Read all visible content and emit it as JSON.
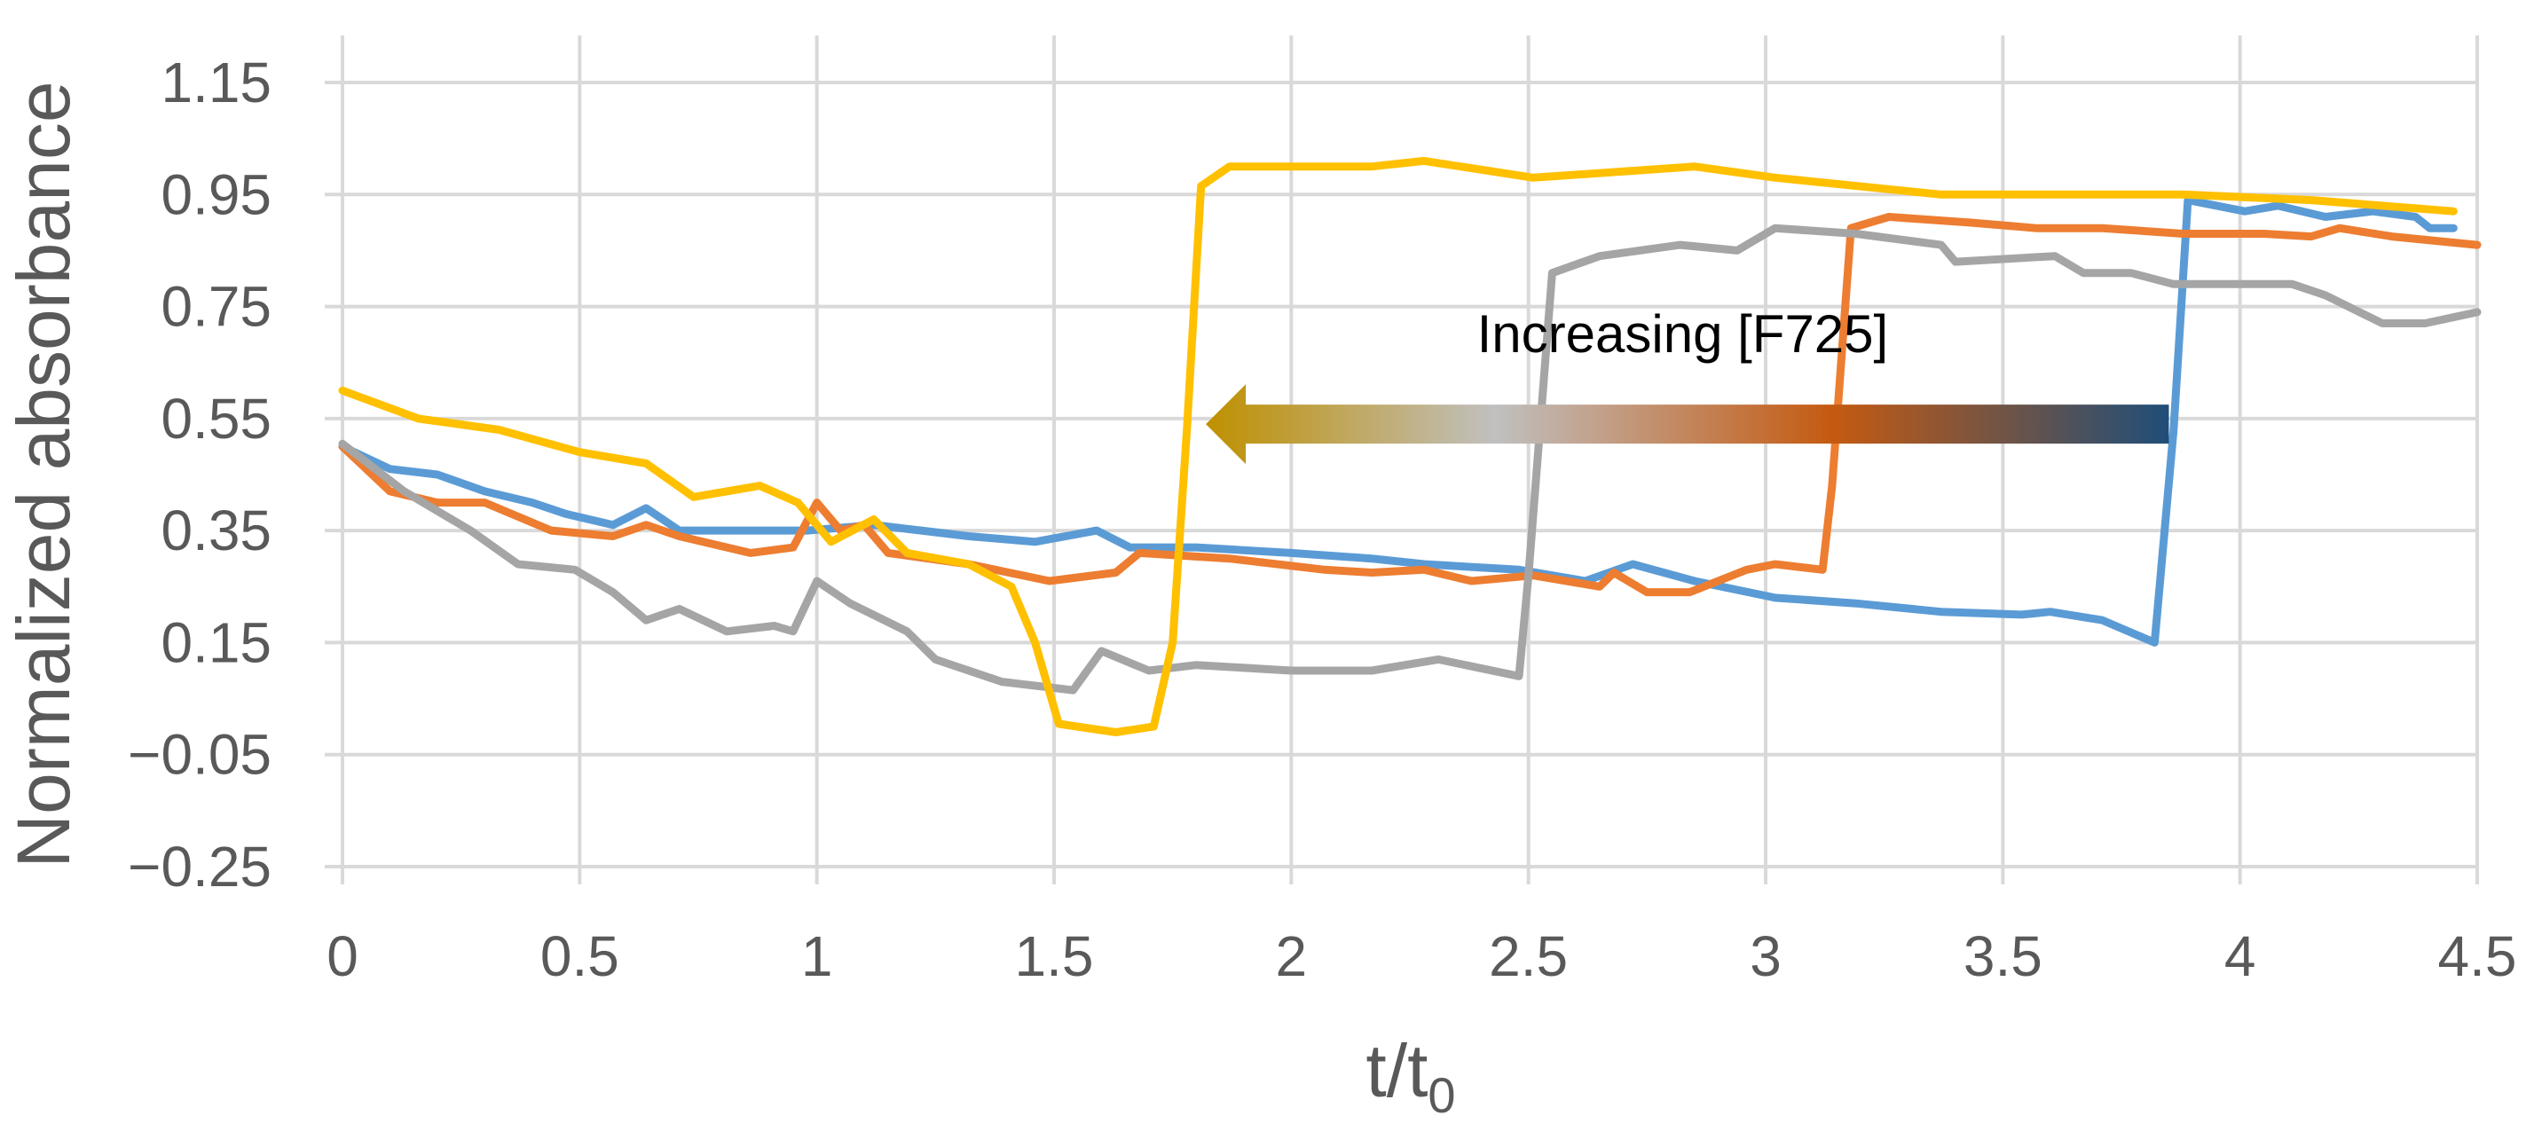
{
  "chart_data": {
    "type": "line",
    "title": "",
    "xlabel": "t/t",
    "xlabel_subscript": "0",
    "ylabel": "Normalized absorbance",
    "xlim": [
      0,
      4.5
    ],
    "ylim": [
      -0.25,
      1.15
    ],
    "x_ticks": [
      "0",
      "0.5",
      "1",
      "1.5",
      "2",
      "2.5",
      "3",
      "3.5",
      "4",
      "4.5"
    ],
    "y_ticks": [
      "1.15",
      "0.95",
      "0.75",
      "0.55",
      "0.35",
      "0.15",
      "−0.05",
      "−0.25"
    ],
    "grid": true,
    "legend": "none",
    "annotation": {
      "text": "Increasing [F725]",
      "arrow_from_x": 3.85,
      "arrow_to_x": 1.82,
      "arrow_y": 0.54,
      "arrow_gradient": [
        "#bf9000",
        "#c0c0c0",
        "#c55a11",
        "#1f4e79"
      ]
    },
    "series": [
      {
        "color": "#5b9bd5",
        "points": [
          [
            0,
            0.5
          ],
          [
            0.1,
            0.46
          ],
          [
            0.2,
            0.45
          ],
          [
            0.3,
            0.42
          ],
          [
            0.4,
            0.4
          ],
          [
            0.47,
            0.38
          ],
          [
            0.57,
            0.36
          ],
          [
            0.64,
            0.39
          ],
          [
            0.71,
            0.35
          ],
          [
            0.84,
            0.35
          ],
          [
            0.98,
            0.35
          ],
          [
            1.12,
            0.36
          ],
          [
            1.22,
            0.35
          ],
          [
            1.32,
            0.34
          ],
          [
            1.46,
            0.33
          ],
          [
            1.59,
            0.35
          ],
          [
            1.66,
            0.32
          ],
          [
            1.8,
            0.32
          ],
          [
            2.0,
            0.31
          ],
          [
            2.17,
            0.3
          ],
          [
            2.28,
            0.29
          ],
          [
            2.48,
            0.28
          ],
          [
            2.62,
            0.26
          ],
          [
            2.72,
            0.29
          ],
          [
            2.85,
            0.26
          ],
          [
            3.02,
            0.23
          ],
          [
            3.19,
            0.22
          ],
          [
            3.37,
            0.205
          ],
          [
            3.54,
            0.2
          ],
          [
            3.6,
            0.205
          ],
          [
            3.71,
            0.19
          ],
          [
            3.82,
            0.15
          ],
          [
            3.86,
            0.53
          ],
          [
            3.89,
            0.94
          ],
          [
            4.01,
            0.92
          ],
          [
            4.08,
            0.93
          ],
          [
            4.18,
            0.91
          ],
          [
            4.28,
            0.92
          ],
          [
            4.37,
            0.91
          ],
          [
            4.4,
            0.89
          ],
          [
            4.45,
            0.89
          ]
        ]
      },
      {
        "color": "#ed7d31",
        "points": [
          [
            0,
            0.5
          ],
          [
            0.1,
            0.42
          ],
          [
            0.2,
            0.4
          ],
          [
            0.3,
            0.4
          ],
          [
            0.44,
            0.35
          ],
          [
            0.57,
            0.34
          ],
          [
            0.64,
            0.36
          ],
          [
            0.71,
            0.34
          ],
          [
            0.86,
            0.31
          ],
          [
            0.95,
            0.32
          ],
          [
            1.0,
            0.4
          ],
          [
            1.05,
            0.35
          ],
          [
            1.1,
            0.36
          ],
          [
            1.15,
            0.31
          ],
          [
            1.32,
            0.29
          ],
          [
            1.49,
            0.26
          ],
          [
            1.63,
            0.275
          ],
          [
            1.68,
            0.31
          ],
          [
            1.87,
            0.3
          ],
          [
            2.07,
            0.28
          ],
          [
            2.17,
            0.275
          ],
          [
            2.28,
            0.28
          ],
          [
            2.38,
            0.26
          ],
          [
            2.51,
            0.27
          ],
          [
            2.65,
            0.25
          ],
          [
            2.68,
            0.275
          ],
          [
            2.75,
            0.24
          ],
          [
            2.84,
            0.24
          ],
          [
            2.96,
            0.28
          ],
          [
            3.02,
            0.29
          ],
          [
            3.12,
            0.28
          ],
          [
            3.14,
            0.43
          ],
          [
            3.18,
            0.89
          ],
          [
            3.26,
            0.91
          ],
          [
            3.43,
            0.9
          ],
          [
            3.57,
            0.89
          ],
          [
            3.71,
            0.89
          ],
          [
            3.88,
            0.88
          ],
          [
            4.05,
            0.88
          ],
          [
            4.15,
            0.875
          ],
          [
            4.21,
            0.89
          ],
          [
            4.32,
            0.875
          ],
          [
            4.5,
            0.86
          ]
        ]
      },
      {
        "color": "#a5a5a5",
        "points": [
          [
            0,
            0.505
          ],
          [
            0.13,
            0.42
          ],
          [
            0.27,
            0.35
          ],
          [
            0.37,
            0.29
          ],
          [
            0.49,
            0.28
          ],
          [
            0.57,
            0.24
          ],
          [
            0.64,
            0.19
          ],
          [
            0.71,
            0.21
          ],
          [
            0.81,
            0.17
          ],
          [
            0.91,
            0.18
          ],
          [
            0.95,
            0.17
          ],
          [
            1.0,
            0.26
          ],
          [
            1.07,
            0.22
          ],
          [
            1.19,
            0.17
          ],
          [
            1.25,
            0.12
          ],
          [
            1.39,
            0.08
          ],
          [
            1.49,
            0.07
          ],
          [
            1.54,
            0.065
          ],
          [
            1.6,
            0.135
          ],
          [
            1.7,
            0.1
          ],
          [
            1.8,
            0.11
          ],
          [
            2.0,
            0.1
          ],
          [
            2.17,
            0.1
          ],
          [
            2.31,
            0.12
          ],
          [
            2.48,
            0.09
          ],
          [
            2.5,
            0.27
          ],
          [
            2.55,
            0.81
          ],
          [
            2.65,
            0.84
          ],
          [
            2.82,
            0.86
          ],
          [
            2.94,
            0.85
          ],
          [
            3.02,
            0.89
          ],
          [
            3.19,
            0.88
          ],
          [
            3.37,
            0.86
          ],
          [
            3.4,
            0.83
          ],
          [
            3.61,
            0.84
          ],
          [
            3.67,
            0.81
          ],
          [
            3.77,
            0.81
          ],
          [
            3.86,
            0.79
          ],
          [
            3.98,
            0.79
          ],
          [
            4.11,
            0.79
          ],
          [
            4.18,
            0.77
          ],
          [
            4.3,
            0.72
          ],
          [
            4.39,
            0.72
          ],
          [
            4.5,
            0.74
          ]
        ]
      },
      {
        "color": "#ffc000",
        "points": [
          [
            0,
            0.6
          ],
          [
            0.16,
            0.55
          ],
          [
            0.33,
            0.53
          ],
          [
            0.5,
            0.49
          ],
          [
            0.64,
            0.47
          ],
          [
            0.74,
            0.41
          ],
          [
            0.88,
            0.43
          ],
          [
            0.96,
            0.4
          ],
          [
            1.03,
            0.33
          ],
          [
            1.12,
            0.37
          ],
          [
            1.19,
            0.31
          ],
          [
            1.32,
            0.29
          ],
          [
            1.41,
            0.25
          ],
          [
            1.46,
            0.15
          ],
          [
            1.51,
            0.005
          ],
          [
            1.63,
            -0.01
          ],
          [
            1.71,
            0.0
          ],
          [
            1.75,
            0.15
          ],
          [
            1.78,
            0.53
          ],
          [
            1.81,
            0.965
          ],
          [
            1.87,
            1.0
          ],
          [
            2.17,
            1.0
          ],
          [
            2.28,
            1.01
          ],
          [
            2.51,
            0.98
          ],
          [
            2.85,
            1.0
          ],
          [
            3.02,
            0.98
          ],
          [
            3.37,
            0.95
          ],
          [
            3.88,
            0.95
          ],
          [
            4.15,
            0.94
          ],
          [
            4.45,
            0.92
          ]
        ]
      }
    ]
  }
}
